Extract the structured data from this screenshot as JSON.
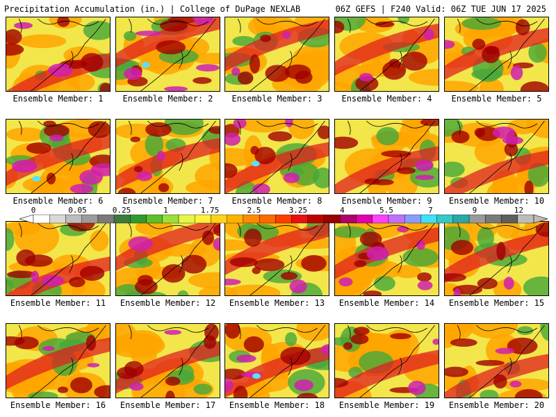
{
  "header": {
    "title": "Precipitation Accumulation (in.) | College of DuPage NEXLAB",
    "run_info": "06Z GEFS | F240 Valid: 06Z TUE JUN 17 2025"
  },
  "members": [
    "Ensemble Member: 1",
    "Ensemble Member: 2",
    "Ensemble Member: 3",
    "Ensemble Member: 4",
    "Ensemble Member: 5",
    "Ensemble Member: 6",
    "Ensemble Member: 7",
    "Ensemble Member: 8",
    "Ensemble Member: 9",
    "Ensemble Member: 10",
    "Ensemble Member: 11",
    "Ensemble Member: 12",
    "Ensemble Member: 13",
    "Ensemble Member: 14",
    "Ensemble Member: 15",
    "Ensemble Member: 16",
    "Ensemble Member: 17",
    "Ensemble Member: 18",
    "Ensemble Member: 19",
    "Ensemble Member: 20"
  ],
  "legend": {
    "tick_labels": [
      "0",
      "0.05",
      "0.25",
      "1",
      "1.75",
      "2.5",
      "3.25",
      "4",
      "5.5",
      "7",
      "9",
      "12"
    ],
    "colors": [
      "#ffffff",
      "#d9d9d9",
      "#bdbdbd",
      "#9c9c9c",
      "#7a7a7a",
      "#3d7a3d",
      "#2f9a2f",
      "#5cc02a",
      "#9be03a",
      "#e6f54a",
      "#fff23a",
      "#ffd21a",
      "#ffb300",
      "#ff8c00",
      "#ff6a00",
      "#ff3d00",
      "#e81010",
      "#c00000",
      "#990000",
      "#b0006a",
      "#e000b0",
      "#ff40ff",
      "#c070ff",
      "#8a9cff",
      "#40e0ff",
      "#35c8c8",
      "#2aa8a8",
      "#9a9a9a",
      "#7a7a7a",
      "#5e5e5e",
      "#bcbcbc"
    ]
  },
  "palette": {
    "green": "#45a83a",
    "yellow": "#f2e64a",
    "orange": "#ffa500",
    "red": "#e02020",
    "darkred": "#a00000",
    "magenta": "#d01fb0",
    "cyan": "#5ae0ff"
  }
}
